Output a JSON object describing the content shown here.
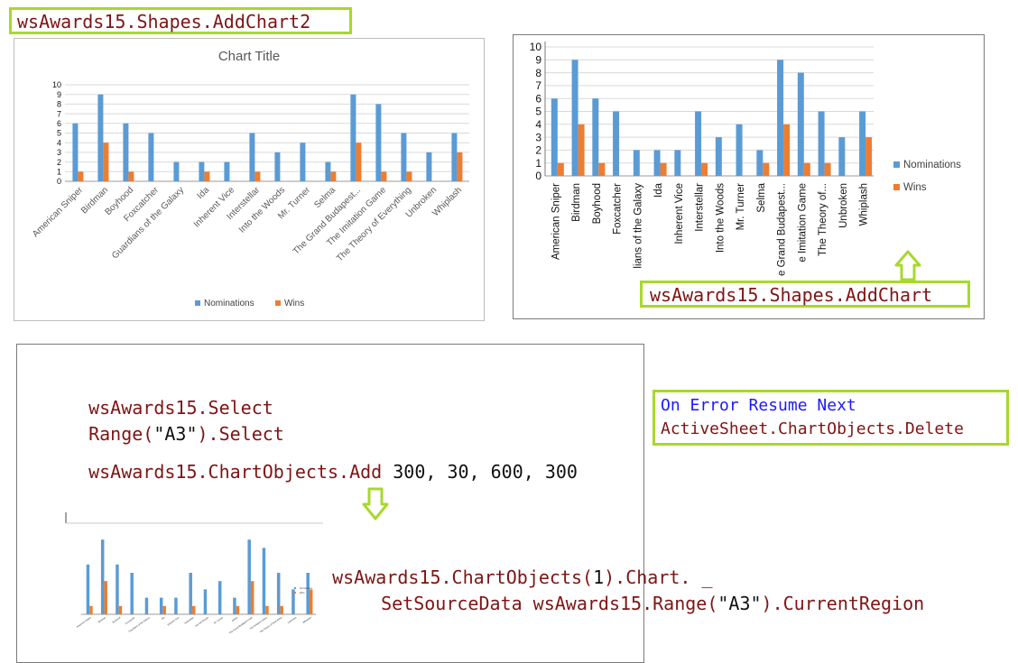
{
  "snippets": {
    "addchart2": "wsAwards15.Shapes.AddChart2",
    "addchart": "wsAwards15.Shapes.AddChart",
    "onerror_kw": "On Error Resume Next",
    "delete_line": "ActiveSheet.ChartObjects.Delete",
    "select1": "wsAwards15.Select",
    "select2_a": "Range(",
    "select2_b": "\"A3\"",
    "select2_c": ").Select",
    "add_a": "wsAwards15.ChartObjects.Add",
    "add_b": " 300, 30, 600, 300",
    "ssd1_a": "wsAwards15.ChartObjects(",
    "ssd1_b": "1",
    "ssd1_c": ").Chart. _",
    "ssd2_a": "SetSourceData wsAwards15.Range(",
    "ssd2_b": "\"A3\"",
    "ssd2_c": ").CurrentRegion"
  },
  "colors": {
    "nominations": "#5b9bd5",
    "wins": "#ed7d31",
    "highlight": "#a8d82c"
  },
  "chart_data": [
    {
      "type": "bar",
      "title": "Chart Title",
      "categories": [
        "American Sniper",
        "Birdman",
        "Boyhood",
        "Foxcatcher",
        "Guardians of the Galaxy",
        "Ida",
        "Inherent Vice",
        "Interstellar",
        "Into the Woods",
        "Mr. Turner",
        "Selma",
        "The Grand Budapest...",
        "The Imitation Game",
        "The Theory of Everything",
        "Unbroken",
        "Whiplash"
      ],
      "series": [
        {
          "name": "Nominations",
          "values": [
            6,
            9,
            6,
            5,
            2,
            2,
            2,
            5,
            3,
            4,
            2,
            9,
            8,
            5,
            3,
            5
          ]
        },
        {
          "name": "Wins",
          "values": [
            1,
            4,
            1,
            0,
            0,
            1,
            0,
            1,
            0,
            0,
            1,
            4,
            1,
            1,
            0,
            3
          ]
        }
      ],
      "yticks": [
        "0",
        "1",
        "2",
        "3",
        "4",
        "5",
        "6",
        "7",
        "8",
        "9",
        "10"
      ],
      "ylim": [
        0,
        10
      ],
      "legend": "bottom"
    },
    {
      "type": "bar",
      "categories": [
        "American Sniper",
        "Birdman",
        "Boyhood",
        "Foxcatcher",
        "lians of the Galaxy",
        "Ida",
        "Inherent Vice",
        "Interstellar",
        "Into the Woods",
        "Mr. Turner",
        "Selma",
        "e Grand Budapest...",
        "e Imitation Game",
        "The Theory of...",
        "Unbroken",
        "Whiplash"
      ],
      "series": [
        {
          "name": "Nominations",
          "values": [
            6,
            9,
            6,
            5,
            2,
            2,
            2,
            5,
            3,
            4,
            2,
            9,
            8,
            5,
            3,
            5
          ]
        },
        {
          "name": "Wins",
          "values": [
            1,
            4,
            1,
            0,
            0,
            1,
            0,
            1,
            0,
            0,
            1,
            4,
            1,
            1,
            0,
            3
          ]
        }
      ],
      "yticks": [
        "0",
        "1",
        "2",
        "3",
        "4",
        "5",
        "6",
        "7",
        "8",
        "9",
        "10"
      ],
      "ylim": [
        0,
        10
      ],
      "legend": "right"
    },
    {
      "type": "bar",
      "categories": [
        "American Sniper",
        "Birdman",
        "Boyhood",
        "Foxcatcher",
        "Guardians of the Galaxy",
        "Ida",
        "Inherent Vice",
        "Interstellar",
        "Into the Woods",
        "Mr. Turner",
        "Selma",
        "The Grand Budapest Hotel",
        "The Imitation Game",
        "The Theory of Everything",
        "Unbroken",
        "Whiplash"
      ],
      "series": [
        {
          "name": "Nominations",
          "values": [
            6,
            9,
            6,
            5,
            2,
            2,
            2,
            5,
            3,
            4,
            2,
            9,
            8,
            5,
            3,
            5
          ]
        },
        {
          "name": "Wins",
          "values": [
            1,
            4,
            1,
            0,
            0,
            1,
            0,
            1,
            0,
            0,
            1,
            4,
            1,
            1,
            0,
            3
          ]
        }
      ],
      "ylim": [
        0,
        10
      ],
      "legend": "right"
    }
  ]
}
